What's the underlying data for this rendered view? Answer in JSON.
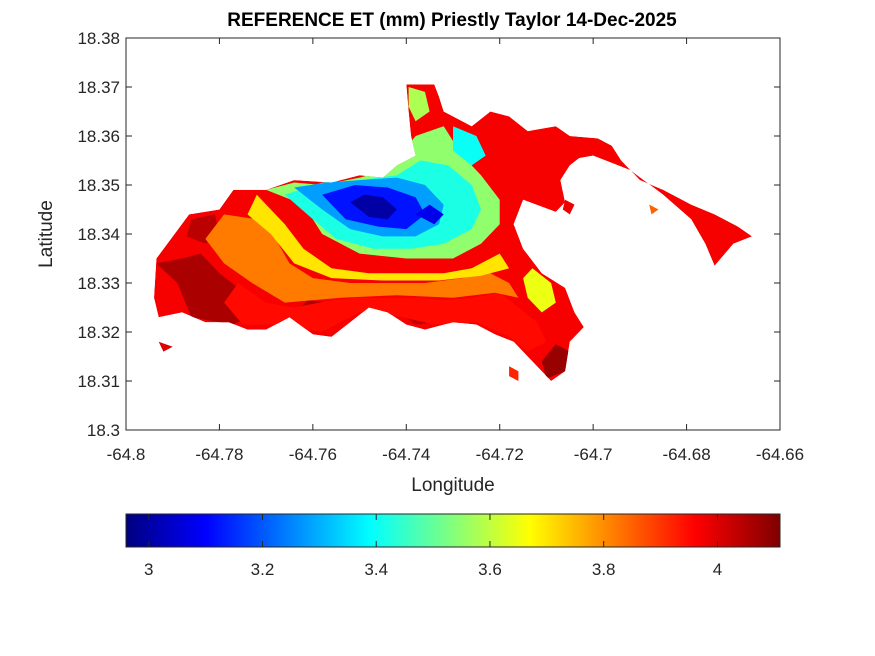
{
  "chart_data": {
    "type": "heatmap",
    "title": "REFERENCE ET (mm) Priestly Taylor 14-Dec-2025",
    "xlabel": "Longitude",
    "ylabel": "Latitude",
    "xlim": [
      -64.8,
      -64.66
    ],
    "ylim": [
      18.3,
      18.38
    ],
    "x_ticks": [
      -64.8,
      -64.78,
      -64.76,
      -64.74,
      -64.72,
      -64.7,
      -64.68,
      -64.66
    ],
    "x_tick_labels": [
      "-64.8",
      "-64.78",
      "-64.76",
      "-64.74",
      "-64.72",
      "-64.7",
      "-64.68",
      "-64.66"
    ],
    "y_ticks": [
      18.3,
      18.31,
      18.32,
      18.33,
      18.34,
      18.35,
      18.36,
      18.37,
      18.38
    ],
    "y_tick_labels": [
      "18.3",
      "18.31",
      "18.32",
      "18.33",
      "18.34",
      "18.35",
      "18.36",
      "18.37",
      "18.38"
    ],
    "grid": false,
    "colormap": "jet",
    "colorbar": {
      "placement": "bottom",
      "clim": [
        2.96,
        4.11
      ],
      "ticks": [
        3,
        3.2,
        3.4,
        3.6,
        3.8,
        4
      ],
      "tick_labels": [
        "3",
        "3.2",
        "3.4",
        "3.6",
        "3.8",
        "4"
      ],
      "stops": [
        {
          "value": 2.96,
          "color": "#00007f"
        },
        {
          "value": 3.1,
          "color": "#0000ff"
        },
        {
          "value": 3.39,
          "color": "#00ffff"
        },
        {
          "value": 3.53,
          "color": "#7fff7f"
        },
        {
          "value": 3.67,
          "color": "#ffff00"
        },
        {
          "value": 3.96,
          "color": "#ff0000"
        },
        {
          "value": 4.11,
          "color": "#7f0000"
        }
      ]
    },
    "land_outline": [
      [
        -64.7935,
        18.335
      ],
      [
        -64.7865,
        18.344
      ],
      [
        -64.78,
        18.345
      ],
      [
        -64.777,
        18.349
      ],
      [
        -64.77,
        18.349
      ],
      [
        -64.764,
        18.351
      ],
      [
        -64.756,
        18.3505
      ],
      [
        -64.75,
        18.352
      ],
      [
        -64.745,
        18.3515
      ],
      [
        -64.742,
        18.354
      ],
      [
        -64.738,
        18.356
      ],
      [
        -64.739,
        18.36
      ],
      [
        -64.7395,
        18.365
      ],
      [
        -64.74,
        18.3705
      ],
      [
        -64.734,
        18.3705
      ],
      [
        -64.733,
        18.368
      ],
      [
        -64.732,
        18.365
      ],
      [
        -64.726,
        18.362
      ],
      [
        -64.722,
        18.365
      ],
      [
        -64.718,
        18.364
      ],
      [
        -64.714,
        18.361
      ],
      [
        -64.708,
        18.362
      ],
      [
        -64.705,
        18.36
      ],
      [
        -64.699,
        18.3595
      ],
      [
        -64.696,
        18.358
      ],
      [
        -64.694,
        18.355
      ],
      [
        -64.69,
        18.351
      ],
      [
        -64.685,
        18.349
      ],
      [
        -64.679,
        18.346
      ],
      [
        -64.674,
        18.344
      ],
      [
        -64.669,
        18.3415
      ],
      [
        -64.666,
        18.3395
      ],
      [
        -64.67,
        18.338
      ],
      [
        -64.674,
        18.3335
      ],
      [
        -64.676,
        18.338
      ],
      [
        -64.679,
        18.343
      ],
      [
        -64.685,
        18.348
      ],
      [
        -64.692,
        18.353
      ],
      [
        -64.696,
        18.3545
      ],
      [
        -64.7,
        18.356
      ],
      [
        -64.703,
        18.3555
      ],
      [
        -64.705,
        18.354
      ],
      [
        -64.707,
        18.351
      ],
      [
        -64.706,
        18.3465
      ],
      [
        -64.708,
        18.3445
      ],
      [
        -64.715,
        18.347
      ],
      [
        -64.717,
        18.342
      ],
      [
        -64.715,
        18.337
      ],
      [
        -64.711,
        18.332
      ],
      [
        -64.706,
        18.329
      ],
      [
        -64.704,
        18.324
      ],
      [
        -64.702,
        18.321
      ],
      [
        -64.705,
        18.318
      ],
      [
        -64.706,
        18.312
      ],
      [
        -64.709,
        18.31
      ],
      [
        -64.711,
        18.312
      ],
      [
        -64.714,
        18.315
      ],
      [
        -64.717,
        18.318
      ],
      [
        -64.721,
        18.3195
      ],
      [
        -64.725,
        18.3215
      ],
      [
        -64.73,
        18.322
      ],
      [
        -64.736,
        18.3205
      ],
      [
        -64.74,
        18.3215
      ],
      [
        -64.744,
        18.324
      ],
      [
        -64.748,
        18.325
      ],
      [
        -64.752,
        18.322
      ],
      [
        -64.756,
        18.319
      ],
      [
        -64.76,
        18.3195
      ],
      [
        -64.765,
        18.323
      ],
      [
        -64.77,
        18.3205
      ],
      [
        -64.774,
        18.3205
      ],
      [
        -64.778,
        18.322
      ],
      [
        -64.783,
        18.322
      ],
      [
        -64.788,
        18.324
      ],
      [
        -64.793,
        18.323
      ],
      [
        -64.794,
        18.327
      ],
      [
        -64.7935,
        18.335
      ]
    ],
    "contour_zones": [
      {
        "value": 4.06,
        "polygon": [
          [
            -64.7935,
            18.334
          ],
          [
            -64.789,
            18.33
          ],
          [
            -64.786,
            18.323
          ],
          [
            -64.783,
            18.3225
          ],
          [
            -64.777,
            18.3215
          ],
          [
            -64.774,
            18.323
          ],
          [
            -64.776,
            18.329
          ],
          [
            -64.78,
            18.332
          ],
          [
            -64.784,
            18.336
          ],
          [
            -64.788,
            18.335
          ]
        ]
      },
      {
        "value": 4.04,
        "polygon": [
          [
            -64.786,
            18.343
          ],
          [
            -64.781,
            18.344
          ],
          [
            -64.78,
            18.34
          ],
          [
            -64.783,
            18.338
          ],
          [
            -64.787,
            18.3395
          ]
        ]
      },
      {
        "value": 4.05,
        "polygon": [
          [
            -64.764,
            18.324
          ],
          [
            -64.758,
            18.32
          ],
          [
            -64.753,
            18.3225
          ],
          [
            -64.756,
            18.326
          ],
          [
            -64.761,
            18.3265
          ]
        ]
      },
      {
        "value": 4.03,
        "polygon": [
          [
            -64.744,
            18.3255
          ],
          [
            -64.738,
            18.3215
          ],
          [
            -64.73,
            18.3225
          ],
          [
            -64.733,
            18.326
          ],
          [
            -64.739,
            18.3265
          ]
        ]
      },
      {
        "value": 4.08,
        "polygon": [
          [
            -64.71,
            18.3105
          ],
          [
            -64.706,
            18.312
          ],
          [
            -64.705,
            18.316
          ],
          [
            -64.708,
            18.3175
          ],
          [
            -64.711,
            18.314
          ]
        ]
      },
      {
        "value": 3.95,
        "polygon": [
          [
            -64.776,
            18.33
          ],
          [
            -64.77,
            18.326
          ],
          [
            -64.764,
            18.325
          ],
          [
            -64.756,
            18.3265
          ],
          [
            -64.75,
            18.327
          ],
          [
            -64.744,
            18.327
          ],
          [
            -64.738,
            18.327
          ],
          [
            -64.732,
            18.3265
          ],
          [
            -64.726,
            18.327
          ],
          [
            -64.72,
            18.328
          ],
          [
            -64.716,
            18.325
          ],
          [
            -64.712,
            18.322
          ],
          [
            -64.71,
            18.318
          ],
          [
            -64.714,
            18.316
          ],
          [
            -64.718,
            18.319
          ],
          [
            -64.725,
            18.322
          ],
          [
            -64.734,
            18.3215
          ],
          [
            -64.743,
            18.3235
          ],
          [
            -64.75,
            18.324
          ],
          [
            -64.758,
            18.32
          ],
          [
            -64.768,
            18.3215
          ],
          [
            -64.775,
            18.3215
          ],
          [
            -64.779,
            18.326
          ]
        ]
      },
      {
        "value": 3.82,
        "polygon": [
          [
            -64.779,
            18.344
          ],
          [
            -64.772,
            18.343
          ],
          [
            -64.768,
            18.339
          ],
          [
            -64.765,
            18.334
          ],
          [
            -64.76,
            18.331
          ],
          [
            -64.752,
            18.33
          ],
          [
            -64.744,
            18.33
          ],
          [
            -64.736,
            18.33
          ],
          [
            -64.728,
            18.331
          ],
          [
            -64.722,
            18.332
          ],
          [
            -64.718,
            18.33
          ],
          [
            -64.716,
            18.327
          ],
          [
            -64.721,
            18.328
          ],
          [
            -64.73,
            18.327
          ],
          [
            -64.742,
            18.3275
          ],
          [
            -64.754,
            18.327
          ],
          [
            -64.766,
            18.326
          ],
          [
            -64.773,
            18.33
          ],
          [
            -64.779,
            18.334
          ],
          [
            -64.783,
            18.339
          ]
        ]
      },
      {
        "value": 3.7,
        "polygon": [
          [
            -64.772,
            18.348
          ],
          [
            -64.766,
            18.342
          ],
          [
            -64.762,
            18.337
          ],
          [
            -64.756,
            18.333
          ],
          [
            -64.748,
            18.332
          ],
          [
            -64.74,
            18.332
          ],
          [
            -64.732,
            18.332
          ],
          [
            -64.726,
            18.333
          ],
          [
            -64.72,
            18.336
          ],
          [
            -64.718,
            18.333
          ],
          [
            -64.724,
            18.3315
          ],
          [
            -64.733,
            18.3305
          ],
          [
            -64.745,
            18.3305
          ],
          [
            -64.756,
            18.331
          ],
          [
            -64.764,
            18.334
          ],
          [
            -64.769,
            18.34
          ],
          [
            -64.774,
            18.344
          ]
        ]
      },
      {
        "value": 3.65,
        "polygon": [
          [
            -64.713,
            18.333
          ],
          [
            -64.709,
            18.33
          ],
          [
            -64.708,
            18.326
          ],
          [
            -64.711,
            18.324
          ],
          [
            -64.714,
            18.327
          ],
          [
            -64.715,
            18.331
          ]
        ]
      },
      {
        "value": 3.55,
        "polygon": [
          [
            -64.77,
            18.349
          ],
          [
            -64.762,
            18.346
          ],
          [
            -64.758,
            18.34
          ],
          [
            -64.75,
            18.336
          ],
          [
            -64.74,
            18.335
          ],
          [
            -64.73,
            18.335
          ],
          [
            -64.724,
            18.338
          ],
          [
            -64.72,
            18.342
          ],
          [
            -64.72,
            18.347
          ],
          [
            -64.724,
            18.352
          ],
          [
            -64.728,
            18.356
          ],
          [
            -64.732,
            18.362
          ],
          [
            -64.738,
            18.36
          ],
          [
            -64.744,
            18.353
          ],
          [
            -64.75,
            18.3515
          ],
          [
            -64.758,
            18.35
          ],
          [
            -64.764,
            18.3505
          ]
        ]
      },
      {
        "value": 3.58,
        "polygon": [
          [
            -64.7395,
            18.37
          ],
          [
            -64.736,
            18.369
          ],
          [
            -64.735,
            18.365
          ],
          [
            -64.738,
            18.363
          ],
          [
            -64.7395,
            18.366
          ]
        ]
      },
      {
        "value": 3.42,
        "polygon": [
          [
            -64.766,
            18.348
          ],
          [
            -64.76,
            18.343
          ],
          [
            -64.755,
            18.339
          ],
          [
            -64.747,
            18.337
          ],
          [
            -64.739,
            18.337
          ],
          [
            -64.732,
            18.338
          ],
          [
            -64.726,
            18.341
          ],
          [
            -64.724,
            18.345
          ],
          [
            -64.726,
            18.35
          ],
          [
            -64.731,
            18.354
          ],
          [
            -64.737,
            18.355
          ],
          [
            -64.742,
            18.352
          ],
          [
            -64.75,
            18.351
          ],
          [
            -64.758,
            18.3505
          ]
        ]
      },
      {
        "value": 3.4,
        "polygon": [
          [
            -64.73,
            18.362
          ],
          [
            -64.725,
            18.36
          ],
          [
            -64.723,
            18.356
          ],
          [
            -64.726,
            18.354
          ],
          [
            -64.73,
            18.357
          ]
        ]
      },
      {
        "value": 3.28,
        "polygon": [
          [
            -64.764,
            18.3495
          ],
          [
            -64.758,
            18.345
          ],
          [
            -64.752,
            18.341
          ],
          [
            -64.745,
            18.3395
          ],
          [
            -64.738,
            18.3395
          ],
          [
            -64.733,
            18.342
          ],
          [
            -64.732,
            18.346
          ],
          [
            -64.736,
            18.35
          ],
          [
            -64.742,
            18.3515
          ],
          [
            -64.75,
            18.351
          ],
          [
            -64.757,
            18.3505
          ]
        ]
      },
      {
        "value": 3.12,
        "polygon": [
          [
            -64.758,
            18.348
          ],
          [
            -64.753,
            18.343
          ],
          [
            -64.746,
            18.3415
          ],
          [
            -64.74,
            18.341
          ],
          [
            -64.736,
            18.344
          ],
          [
            -64.738,
            18.3475
          ],
          [
            -64.744,
            18.3495
          ],
          [
            -64.751,
            18.35
          ]
        ]
      },
      {
        "value": 3.0,
        "polygon": [
          [
            -64.752,
            18.3465
          ],
          [
            -64.748,
            18.3435
          ],
          [
            -64.744,
            18.343
          ],
          [
            -64.742,
            18.345
          ],
          [
            -64.745,
            18.3475
          ],
          [
            -64.749,
            18.348
          ]
        ]
      },
      {
        "value": 3.08,
        "polygon": [
          [
            -64.738,
            18.344
          ],
          [
            -64.734,
            18.342
          ],
          [
            -64.732,
            18.344
          ],
          [
            -64.735,
            18.346
          ]
        ]
      }
    ],
    "islets": [
      {
        "value": 3.92,
        "polygon": [
          [
            -64.718,
            18.313
          ],
          [
            -64.716,
            18.312
          ],
          [
            -64.716,
            18.31
          ],
          [
            -64.718,
            18.311
          ]
        ]
      },
      {
        "value": 3.98,
        "polygon": [
          [
            -64.706,
            18.347
          ],
          [
            -64.704,
            18.346
          ],
          [
            -64.705,
            18.344
          ],
          [
            -64.7065,
            18.345
          ]
        ]
      },
      {
        "value": 3.85,
        "polygon": [
          [
            -64.688,
            18.346
          ],
          [
            -64.686,
            18.345
          ],
          [
            -64.6875,
            18.344
          ]
        ]
      },
      {
        "value": 4.0,
        "polygon": [
          [
            -64.793,
            18.318
          ],
          [
            -64.79,
            18.317
          ],
          [
            -64.792,
            18.316
          ]
        ]
      }
    ]
  }
}
